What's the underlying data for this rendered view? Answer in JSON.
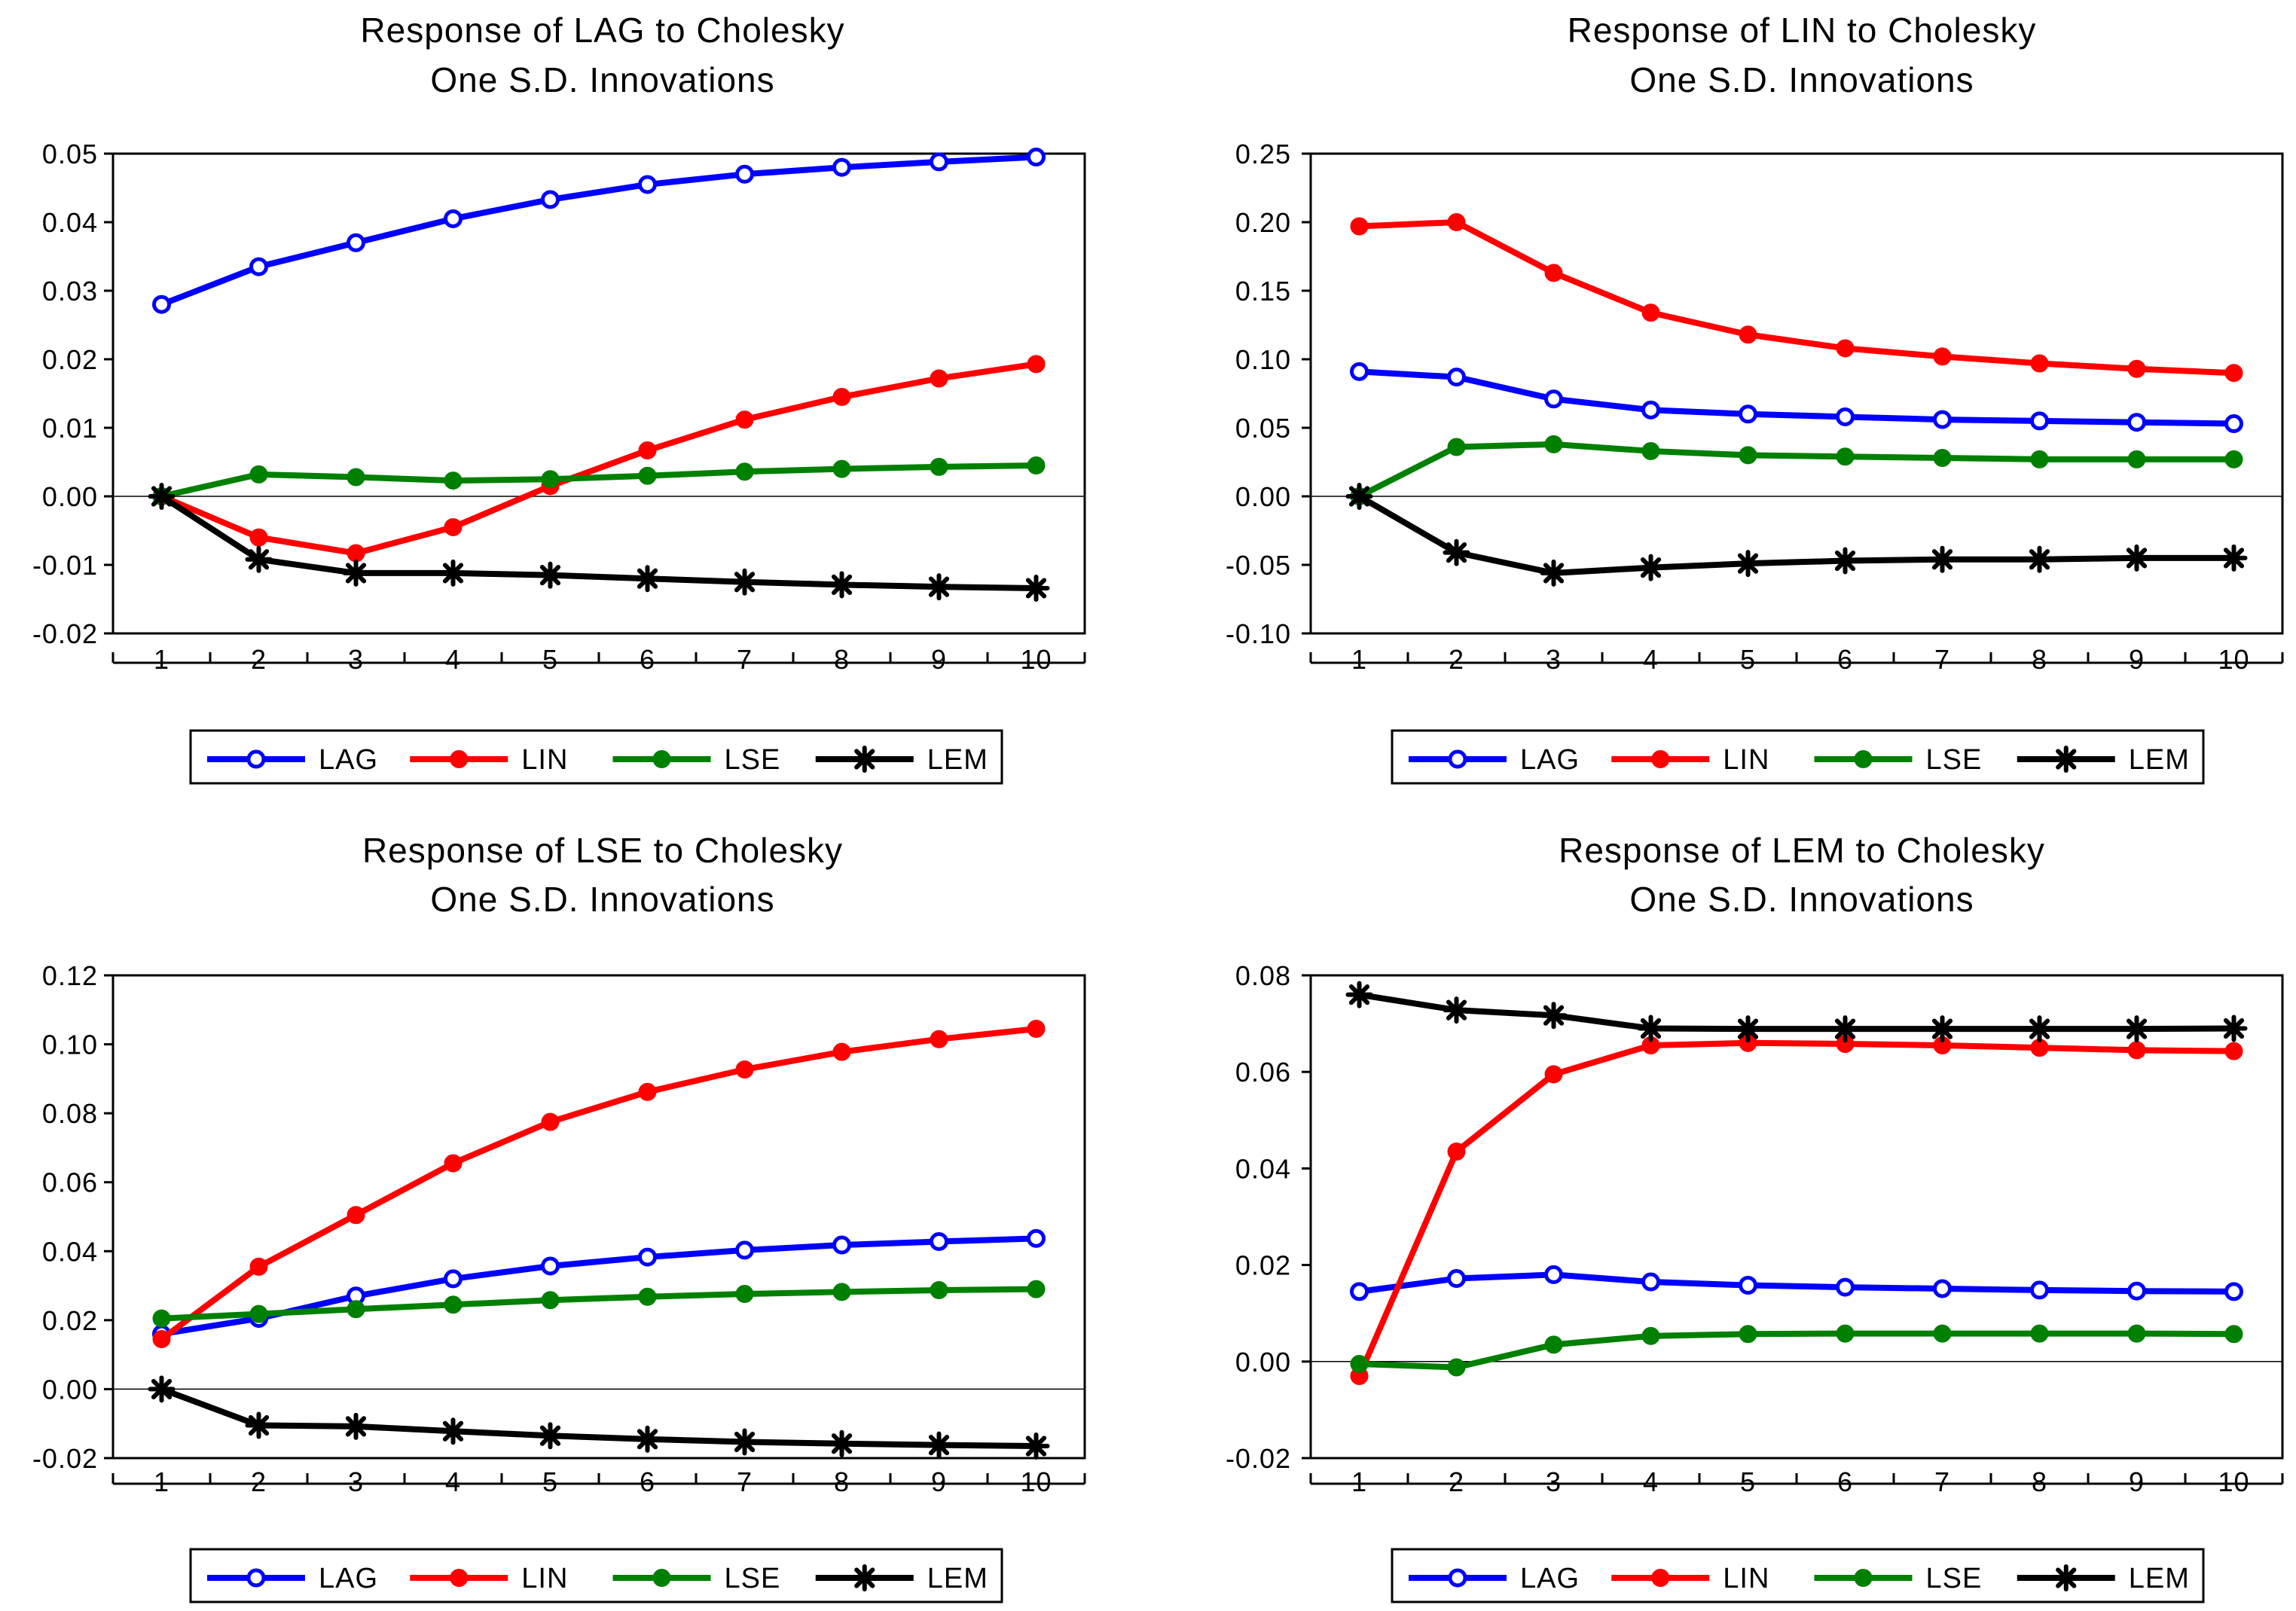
{
  "series_styles": {
    "LAG": {
      "color": "#0000ff",
      "marker": "open-circle"
    },
    "LIN": {
      "color": "#ff0000",
      "marker": "filled-circle"
    },
    "LSE": {
      "color": "#008000",
      "marker": "filled-circle"
    },
    "LEM": {
      "color": "#000000",
      "marker": "asterisk"
    }
  },
  "chart_data": [
    {
      "type": "line",
      "title": "Response of LAG to Cholesky",
      "subtitle": "One S.D. Innovations",
      "xlabel": "",
      "ylabel": "",
      "x": [
        1,
        2,
        3,
        4,
        5,
        6,
        7,
        8,
        9,
        10
      ],
      "ylim": [
        -0.02,
        0.05
      ],
      "yticks": [
        -0.02,
        -0.01,
        0.0,
        0.01,
        0.02,
        0.03,
        0.04,
        0.05
      ],
      "ytick_labels": [
        "-0.02",
        "-0.01",
        "0.00",
        "0.01",
        "0.02",
        "0.03",
        "0.04",
        "0.05"
      ],
      "legend": [
        "LAG",
        "LIN",
        "LSE",
        "LEM"
      ],
      "legend_position": "bottom",
      "series": [
        {
          "name": "LAG",
          "values": [
            0.028,
            0.0335,
            0.037,
            0.0405,
            0.0433,
            0.0455,
            0.047,
            0.048,
            0.0488,
            0.0495
          ]
        },
        {
          "name": "LIN",
          "values": [
            0.0,
            -0.006,
            -0.0083,
            -0.0045,
            0.0015,
            0.0067,
            0.0112,
            0.0145,
            0.0172,
            0.0193
          ]
        },
        {
          "name": "LSE",
          "values": [
            0.0,
            0.0032,
            0.0028,
            0.0023,
            0.0025,
            0.003,
            0.0036,
            0.004,
            0.0043,
            0.0045
          ]
        },
        {
          "name": "LEM",
          "values": [
            0.0,
            -0.0092,
            -0.0112,
            -0.0112,
            -0.0115,
            -0.012,
            -0.0125,
            -0.0129,
            -0.0132,
            -0.0134
          ]
        }
      ]
    },
    {
      "type": "line",
      "title": "Response of LIN to Cholesky",
      "subtitle": "One S.D. Innovations",
      "xlabel": "",
      "ylabel": "",
      "x": [
        1,
        2,
        3,
        4,
        5,
        6,
        7,
        8,
        9,
        10
      ],
      "ylim": [
        -0.1,
        0.25
      ],
      "yticks": [
        -0.1,
        -0.05,
        0.0,
        0.05,
        0.1,
        0.15,
        0.2,
        0.25
      ],
      "ytick_labels": [
        "-0.10",
        "-0.05",
        "0.00",
        "0.05",
        "0.10",
        "0.15",
        "0.20",
        "0.25"
      ],
      "legend": [
        "LAG",
        "LIN",
        "LSE",
        "LEM"
      ],
      "legend_position": "bottom",
      "series": [
        {
          "name": "LAG",
          "values": [
            0.091,
            0.087,
            0.071,
            0.063,
            0.06,
            0.058,
            0.056,
            0.055,
            0.054,
            0.053
          ]
        },
        {
          "name": "LIN",
          "values": [
            0.197,
            0.2,
            0.163,
            0.134,
            0.118,
            0.108,
            0.102,
            0.097,
            0.093,
            0.09
          ]
        },
        {
          "name": "LSE",
          "values": [
            0.0,
            0.036,
            0.038,
            0.033,
            0.03,
            0.029,
            0.028,
            0.027,
            0.027,
            0.027
          ]
        },
        {
          "name": "LEM",
          "values": [
            0.0,
            -0.041,
            -0.056,
            -0.052,
            -0.049,
            -0.047,
            -0.046,
            -0.046,
            -0.045,
            -0.045
          ]
        }
      ]
    },
    {
      "type": "line",
      "title": "Response of LSE to Cholesky",
      "subtitle": "One S.D. Innovations",
      "xlabel": "",
      "ylabel": "",
      "x": [
        1,
        2,
        3,
        4,
        5,
        6,
        7,
        8,
        9,
        10
      ],
      "ylim": [
        -0.02,
        0.12
      ],
      "yticks": [
        -0.02,
        0.0,
        0.02,
        0.04,
        0.06,
        0.08,
        0.1,
        0.12
      ],
      "ytick_labels": [
        "-0.02",
        "0.00",
        "0.02",
        "0.04",
        "0.06",
        "0.08",
        "0.10",
        "0.12"
      ],
      "legend": [
        "LAG",
        "LIN",
        "LSE",
        "LEM"
      ],
      "legend_position": "bottom",
      "series": [
        {
          "name": "LAG",
          "values": [
            0.016,
            0.0205,
            0.027,
            0.032,
            0.0357,
            0.0383,
            0.0403,
            0.0418,
            0.0428,
            0.0437
          ]
        },
        {
          "name": "LIN",
          "values": [
            0.0145,
            0.0355,
            0.0505,
            0.0655,
            0.0775,
            0.0862,
            0.0927,
            0.0978,
            0.1015,
            0.1045
          ]
        },
        {
          "name": "LSE",
          "values": [
            0.0205,
            0.0218,
            0.0232,
            0.0245,
            0.0258,
            0.0268,
            0.0276,
            0.0282,
            0.0287,
            0.029
          ]
        },
        {
          "name": "LEM",
          "values": [
            0.0,
            -0.0105,
            -0.0108,
            -0.0122,
            -0.0135,
            -0.0145,
            -0.0153,
            -0.0158,
            -0.0162,
            -0.0165
          ]
        }
      ]
    },
    {
      "type": "line",
      "title": "Response of LEM to Cholesky",
      "subtitle": "One S.D. Innovations",
      "xlabel": "",
      "ylabel": "",
      "x": [
        1,
        2,
        3,
        4,
        5,
        6,
        7,
        8,
        9,
        10
      ],
      "ylim": [
        -0.02,
        0.08
      ],
      "yticks": [
        -0.02,
        0.0,
        0.02,
        0.04,
        0.06,
        0.08
      ],
      "ytick_labels": [
        "-0.02",
        "0.00",
        "0.02",
        "0.04",
        "0.06",
        "0.08"
      ],
      "legend": [
        "LAG",
        "LIN",
        "LSE",
        "LEM"
      ],
      "legend_position": "bottom",
      "series": [
        {
          "name": "LAG",
          "values": [
            0.0145,
            0.0172,
            0.018,
            0.0165,
            0.0158,
            0.0154,
            0.0151,
            0.0148,
            0.0146,
            0.0145
          ]
        },
        {
          "name": "LIN",
          "values": [
            -0.003,
            0.0435,
            0.0595,
            0.0655,
            0.066,
            0.0658,
            0.0655,
            0.065,
            0.0645,
            0.0643
          ]
        },
        {
          "name": "LSE",
          "values": [
            -0.0005,
            -0.0012,
            0.0035,
            0.0053,
            0.0057,
            0.0058,
            0.0058,
            0.0058,
            0.0058,
            0.0057
          ]
        },
        {
          "name": "LEM",
          "values": [
            0.076,
            0.0728,
            0.0717,
            0.069,
            0.0689,
            0.0689,
            0.0689,
            0.0689,
            0.0689,
            0.069
          ]
        }
      ]
    }
  ]
}
